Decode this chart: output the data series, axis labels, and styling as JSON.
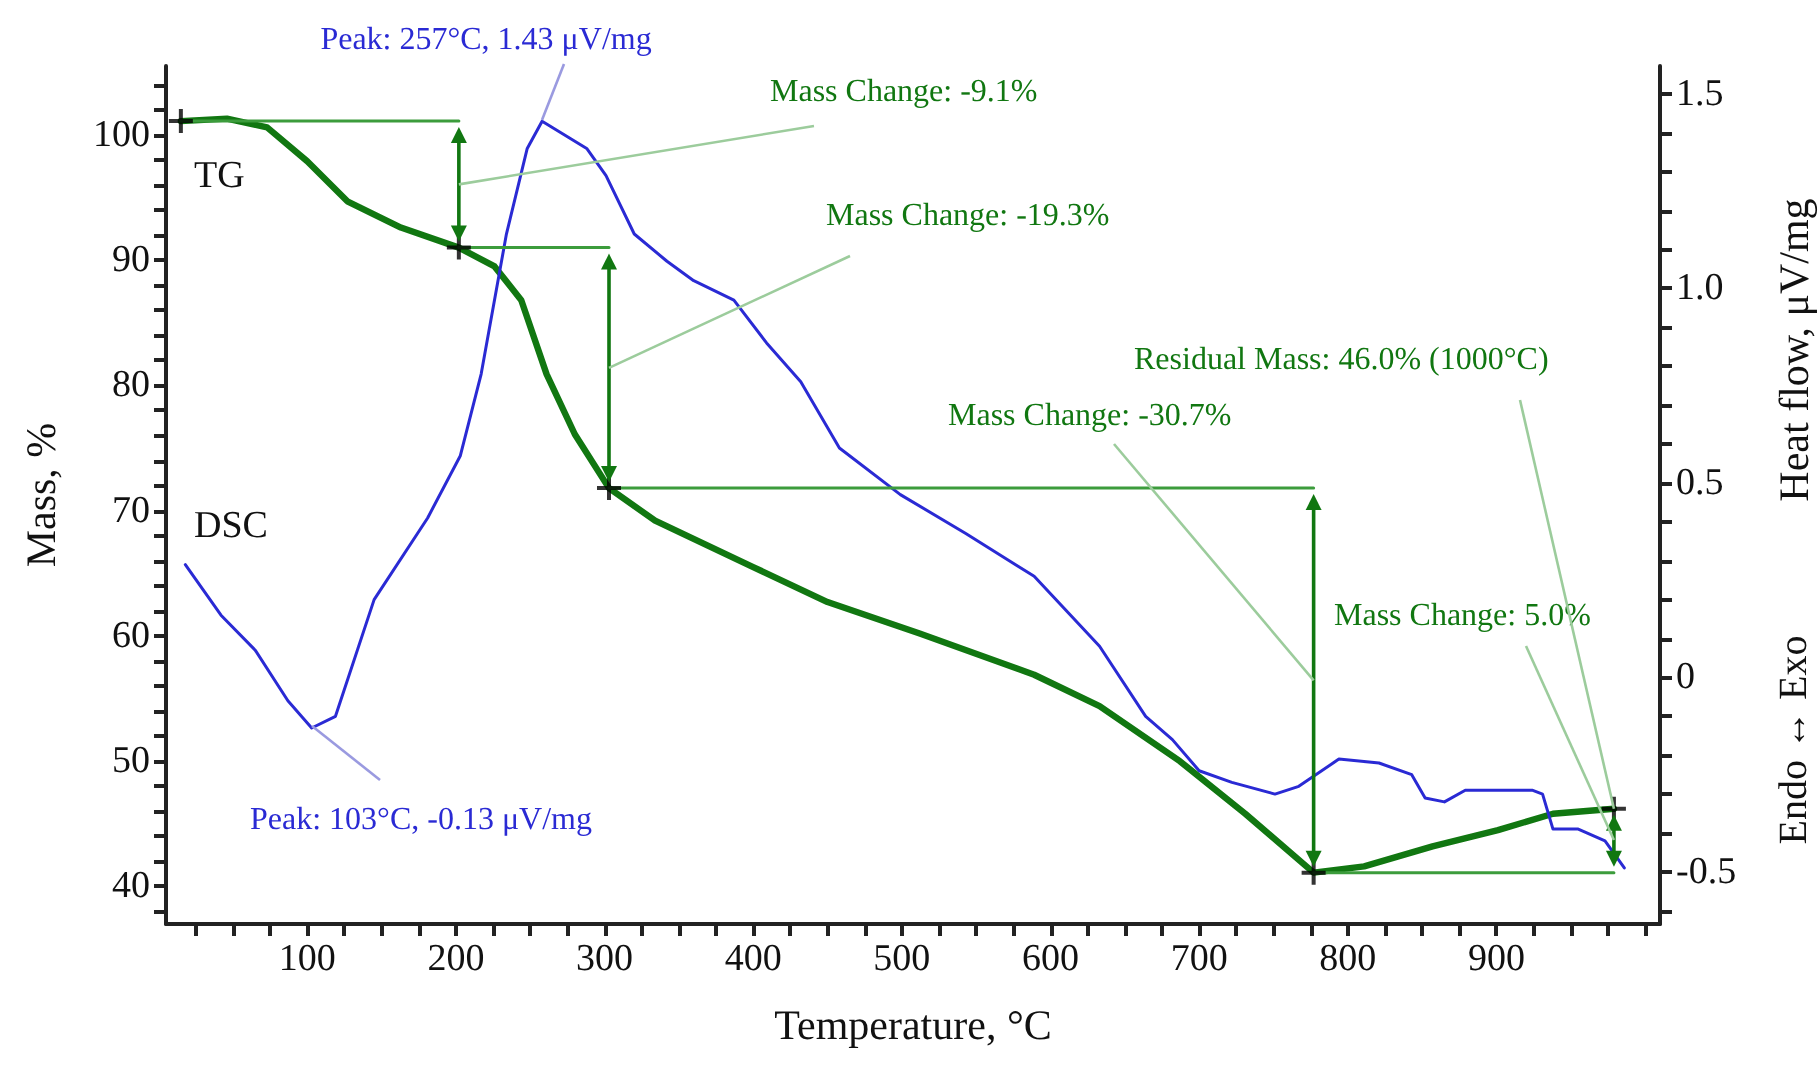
{
  "chart_data": {
    "type": "line",
    "xlabel": "Temperature, °C",
    "ylabel": "Mass, %",
    "y2label": "Heat flow, μV/mg",
    "annotations": [
      "Peak: 257°C, 1.43 μV/mg",
      "Mass Change: -9.1%",
      "Mass Change: -19.3%",
      {
        "text": "Residual Mass: 46.0% (1000°C)",
        "x": 979,
        "y": 46.2
      },
      "Mass Change: -30.7%",
      {
        "text": "Mass Change: 5.0%",
        "x": 979,
        "y": 43.7
      },
      "Peak: 103°C, -0.13 μV/mg",
      "Endo ↔ Exo"
    ],
    "series": [
      {
        "name": "TG",
        "color": "#117711",
        "x": [
          15,
          46,
          73,
          100,
          127,
          163,
          202,
          226,
          244,
          261,
          280,
          303,
          334,
          400,
          450,
          512,
          589,
          633,
          687,
          731,
          777,
          811,
          857,
          901,
          938,
          979
        ],
        "values": [
          101.1,
          101.3,
          100.6,
          97.9,
          94.7,
          92.6,
          91.0,
          89.5,
          86.8,
          80.9,
          76.1,
          71.8,
          69.2,
          65.5,
          62.7,
          60.2,
          56.9,
          54.4,
          50.0,
          45.8,
          41.1,
          41.6,
          43.2,
          44.5,
          45.8,
          46.2
        ]
      },
      {
        "name": "DSC",
        "type": "line",
        "axis": "y2",
        "color": "#2a2ad4",
        "x": [
          18,
          42,
          65,
          87,
          103,
          119,
          145,
          181,
          203,
          217,
          234,
          248,
          258,
          288,
          301,
          320,
          342,
          360,
          387,
          409,
          432,
          458,
          499,
          543,
          589,
          633,
          664,
          682,
          700,
          722,
          751,
          767,
          794,
          821,
          843,
          852,
          865,
          879,
          924,
          931,
          938,
          955,
          973,
          986
        ],
        "values": [
          0.29,
          0.16,
          0.07,
          -0.06,
          -0.13,
          -0.1,
          0.2,
          0.41,
          0.57,
          0.78,
          1.14,
          1.36,
          1.43,
          1.36,
          1.29,
          1.14,
          1.07,
          1.02,
          0.97,
          0.86,
          0.76,
          0.59,
          0.47,
          0.37,
          0.26,
          0.08,
          -0.1,
          -0.16,
          -0.24,
          -0.27,
          -0.3,
          -0.28,
          -0.21,
          -0.22,
          -0.25,
          -0.31,
          -0.32,
          -0.29,
          -0.29,
          -0.3,
          -0.39,
          -0.39,
          -0.42,
          -0.49
        ]
      },
      {
        "type": "line",
        "color": "#3c9c3c",
        "x": [
          15,
          202
        ],
        "values": [
          101.1,
          101.1
        ]
      },
      {
        "type": "line",
        "color": "#3c9c3c",
        "x": [
          202,
          303
        ],
        "values": [
          91.0,
          91.0
        ]
      },
      {
        "type": "line",
        "color": "#3c9c3c",
        "x": [
          303,
          777
        ],
        "values": [
          71.8,
          71.8
        ]
      },
      {
        "type": "line",
        "color": "#3c9c3c",
        "x": [
          777,
          979
        ],
        "values": [
          41.1,
          41.1
        ]
      },
      {
        "type": "scatter",
        "marker": "cross",
        "color": "#000000",
        "x": [
          15,
          202,
          303,
          777,
          979
        ],
        "values": [
          101.1,
          91.0,
          71.8,
          41.1,
          46.2
        ]
      }
    ],
    "xlim": [
      5,
      1010
    ],
    "xticks": [
      {
        "value": 25,
        "label": null
      },
      {
        "value": 50,
        "label": null
      },
      {
        "value": 75,
        "label": null
      },
      100,
      {
        "value": 125,
        "label": null
      },
      {
        "value": 150,
        "label": null
      },
      {
        "value": 175,
        "label": null
      },
      200,
      {
        "value": 225,
        "label": null
      },
      {
        "value": 250,
        "label": null
      },
      {
        "value": 275,
        "label": null
      },
      300,
      {
        "value": 325,
        "label": null
      },
      {
        "value": 350,
        "label": null
      },
      {
        "value": 375,
        "label": null
      },
      400,
      {
        "value": 425,
        "label": null
      },
      {
        "value": 450,
        "label": null
      },
      {
        "value": 475,
        "label": null
      },
      500,
      {
        "value": 525,
        "label": null
      },
      {
        "value": 550,
        "label": null
      },
      {
        "value": 575,
        "label": null
      },
      600,
      {
        "value": 625,
        "label": null
      },
      {
        "value": 650,
        "label": null
      },
      {
        "value": 675,
        "label": null
      },
      700,
      {
        "value": 725,
        "label": null
      },
      {
        "value": 750,
        "label": null
      },
      {
        "value": 775,
        "label": null
      },
      800,
      {
        "value": 825,
        "label": null
      },
      {
        "value": 850,
        "label": null
      },
      {
        "value": 875,
        "label": null
      },
      900,
      {
        "value": 925,
        "label": null
      },
      {
        "value": 950,
        "label": null
      },
      {
        "value": 975,
        "label": null
      },
      {
        "value": 1000,
        "label": null
      }
    ],
    "ylim": [
      37,
      105.5
    ],
    "yticks": [
      {
        "value": 38,
        "label": null
      },
      40,
      {
        "value": 42,
        "label": null
      },
      {
        "value": 44,
        "label": null
      },
      {
        "value": 46,
        "label": null
      },
      {
        "value": 48,
        "label": null
      },
      50,
      {
        "value": 52,
        "label": null
      },
      {
        "value": 54,
        "label": null
      },
      {
        "value": 56,
        "label": null
      },
      {
        "value": 58,
        "label": null
      },
      60,
      {
        "value": 62,
        "label": null
      },
      {
        "value": 64,
        "label": null
      },
      {
        "value": 66,
        "label": null
      },
      {
        "value": 68,
        "label": null
      },
      70,
      {
        "value": 72,
        "label": null
      },
      {
        "value": 74,
        "label": null
      },
      {
        "value": 76,
        "label": null
      },
      {
        "value": 78,
        "label": null
      },
      80,
      {
        "value": 82,
        "label": null
      },
      {
        "value": 84,
        "label": null
      },
      {
        "value": 86,
        "label": null
      },
      {
        "value": 88,
        "label": null
      },
      90,
      {
        "value": 92,
        "label": null
      },
      {
        "value": 94,
        "label": null
      },
      {
        "value": 96,
        "label": null
      },
      {
        "value": 98,
        "label": null
      },
      100,
      {
        "value": 102,
        "label": null
      },
      {
        "value": 104,
        "label": null
      }
    ],
    "y2lim": [
      -0.634,
      1.572
    ],
    "y2ticks": [
      {
        "value": -0.6,
        "label": null
      },
      -0.5,
      {
        "value": -0.4,
        "label": null
      },
      {
        "value": -0.3,
        "label": null
      },
      {
        "value": -0.2,
        "label": null
      },
      {
        "value": -0.1,
        "label": null
      },
      0,
      {
        "value": 0.1,
        "label": null
      },
      {
        "value": 0.2,
        "label": null
      },
      {
        "value": 0.3,
        "label": null
      },
      {
        "value": 0.4,
        "label": null
      },
      0.5,
      {
        "value": 0.6,
        "label": null
      },
      {
        "value": 0.7,
        "label": null
      },
      {
        "value": 0.8,
        "label": null
      },
      {
        "value": 0.9,
        "label": null
      },
      {
        "value": 1,
        "label": "1.0"
      },
      {
        "value": 1.1,
        "label": null
      },
      {
        "value": 1.2,
        "label": null
      },
      {
        "value": 1.3,
        "label": null
      },
      {
        "value": 1.4,
        "label": null
      },
      1.5
    ],
    "marker": "none",
    "line_style": "solid",
    "grid": false,
    "legend": false
  }
}
